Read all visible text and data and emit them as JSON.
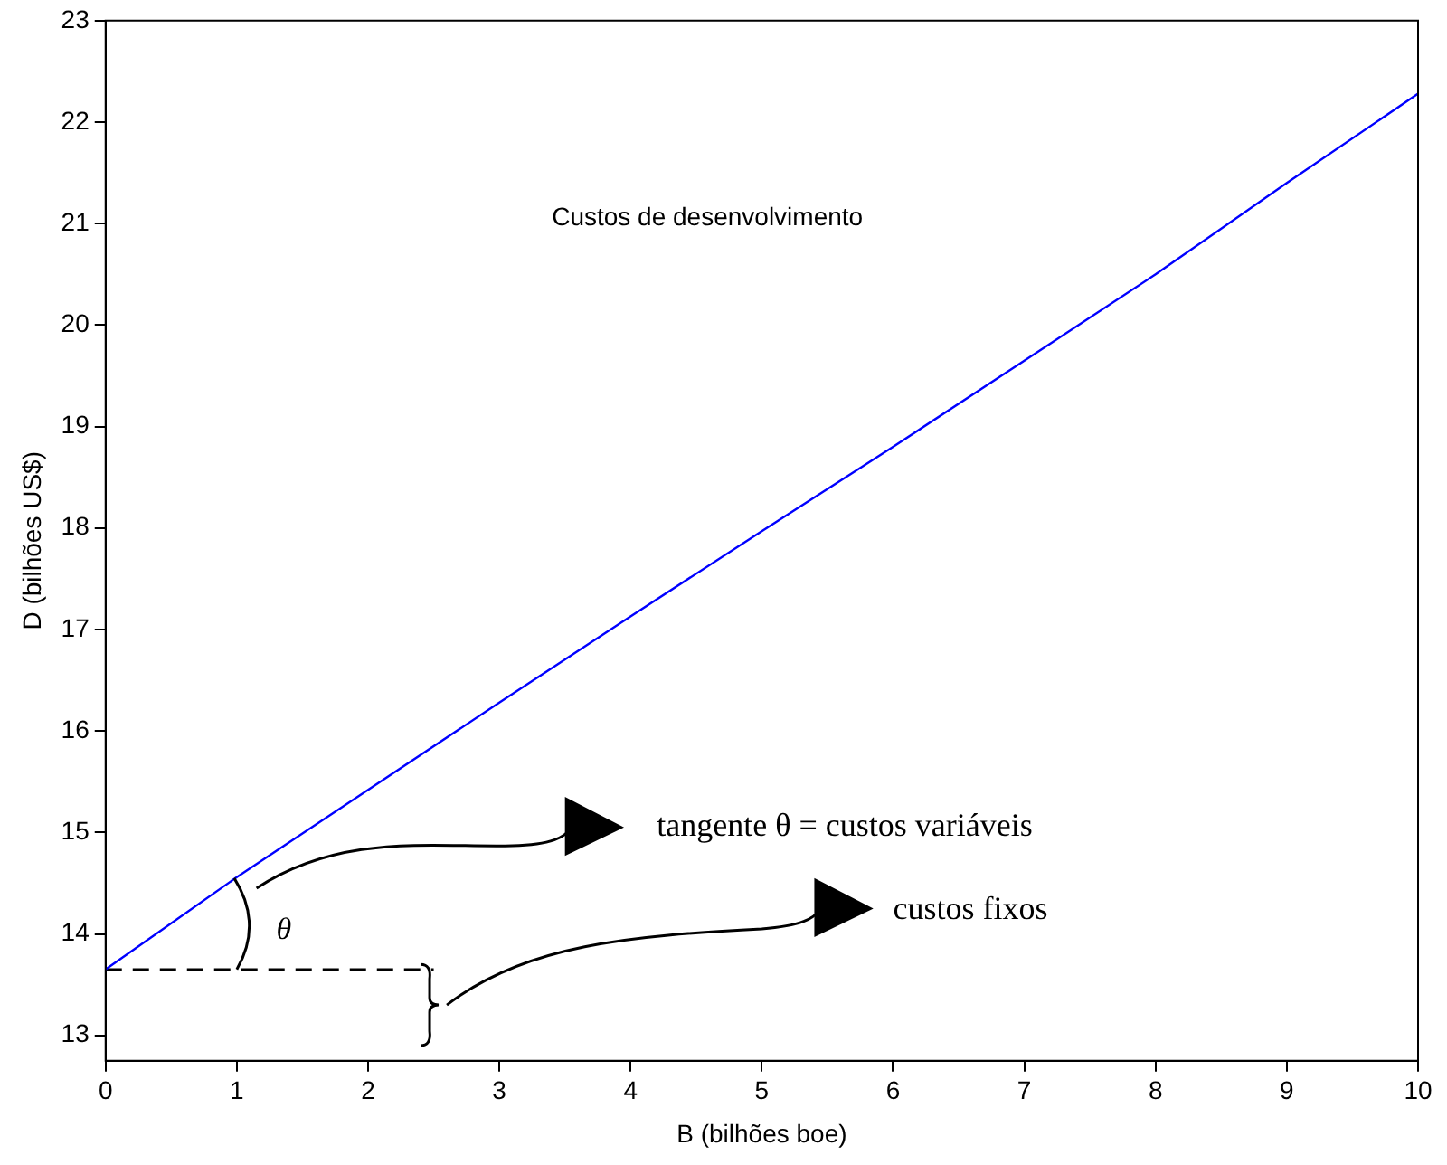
{
  "chart_data": {
    "type": "line",
    "xlabel": "B (bilhões boe)",
    "ylabel": "D (bilhões US$)",
    "xlim": [
      0,
      10
    ],
    "xticks": [
      0,
      1,
      2,
      3,
      4,
      5,
      6,
      7,
      8,
      9,
      10
    ],
    "ylim": [
      12.75,
      23
    ],
    "yticks": [
      13,
      14,
      15,
      16,
      17,
      18,
      19,
      20,
      21,
      22,
      23
    ],
    "grid": false,
    "legend": false,
    "marker": "none",
    "series": [
      {
        "color": "#0000ff",
        "x": [
          0,
          1,
          2,
          3,
          4,
          5,
          6,
          7,
          8,
          9,
          10
        ],
        "values": [
          13.65,
          14.56,
          15.42,
          16.28,
          17.13,
          17.97,
          18.8,
          19.65,
          20.5,
          21.4,
          22.28
        ],
        "line_style": "solid"
      },
      {
        "color": "#000000",
        "x": [
          0,
          2.5
        ],
        "values": [
          13.65,
          13.65
        ],
        "line_style": "dashed"
      }
    ],
    "annotations": [
      "Custos de desenvolvimento",
      "tangente θ = custos variáveis",
      "custos fixos",
      "θ"
    ]
  }
}
